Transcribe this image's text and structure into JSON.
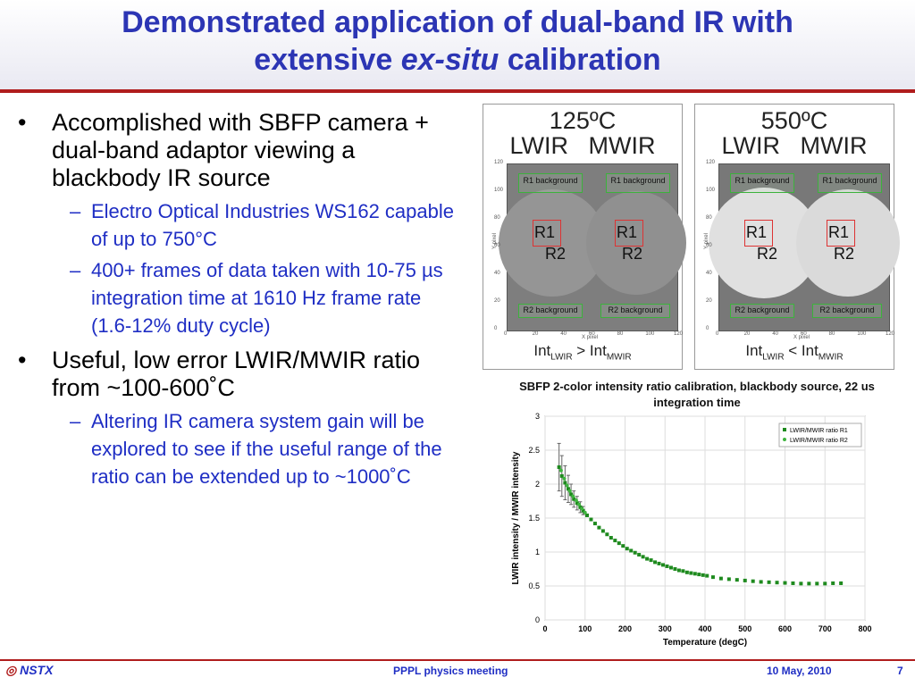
{
  "title": {
    "line1": "Demonstrated application of dual-band IR with",
    "line2_pre": "extensive ",
    "line2_em": "ex-situ",
    "line2_post": " calibration"
  },
  "bullets": [
    {
      "text": "Accomplished with SBFP camera + dual-band adaptor viewing a blackbody IR source",
      "subs": [
        "Electro Optical Industries WS162 capable of up to 750°C",
        "400+ frames of data taken with 10-75 µs integration time at 1610 Hz frame rate (1.6-12% duty cycle)"
      ]
    },
    {
      "text": "Useful, low error LWIR/MWIR ratio from ~100-600˚C",
      "subs": [
        "Altering IR camera system gain will be explored to see if the useful range of the ratio can be extended up to ~1000˚C"
      ]
    }
  ],
  "panels": [
    {
      "temp": "125ºC",
      "bands": "LWIR   MWIR",
      "r1bg": "R1 background",
      "r2bg": "R2 background",
      "r1": "R1",
      "r2": "R2",
      "int_a": "Int",
      "int_a_sub": "LWIR",
      "int_op": " > ",
      "int_b": "Int",
      "int_b_sub": "MWIR"
    },
    {
      "temp": "550ºC",
      "bands": "LWIR   MWIR",
      "r1bg": "R1 background",
      "r2bg": "R2 background",
      "r1": "R1",
      "r2": "R2",
      "int_a": "Int",
      "int_a_sub": "LWIR",
      "int_op": " < ",
      "int_b": "Int",
      "int_b_sub": "MWIR"
    }
  ],
  "image_axes": {
    "y_label": "Y pixel",
    "x_label": "X pixel",
    "ticks": [
      "0",
      "20",
      "40",
      "60",
      "80",
      "100",
      "120"
    ]
  },
  "chart_data": {
    "type": "scatter",
    "title": "SBFP 2-color intensity ratio calibration, blackbody source, 22 us integration time",
    "xlabel": "Temperature (degC)",
    "ylabel": "LWIR intensity / MWIR intensity",
    "xlim": [
      0,
      800
    ],
    "ylim": [
      0,
      3
    ],
    "xticks": [
      0,
      100,
      200,
      300,
      400,
      500,
      600,
      700,
      800
    ],
    "yticks": [
      0,
      0.5,
      1,
      1.5,
      2,
      2.5,
      3
    ],
    "grid": true,
    "legend": "top-right",
    "series": [
      {
        "name": "LWIR/MWIR ratio R1",
        "marker": "square",
        "color": "#1e8a1e",
        "x": [
          35,
          42,
          50,
          58,
          65,
          72,
          80,
          88,
          95,
          105,
          115,
          125,
          135,
          145,
          155,
          165,
          175,
          185,
          195,
          205,
          215,
          225,
          235,
          245,
          255,
          265,
          275,
          285,
          295,
          305,
          315,
          325,
          335,
          345,
          355,
          365,
          375,
          385,
          395,
          405,
          420,
          440,
          460,
          480,
          500,
          520,
          540,
          560,
          580,
          600,
          620,
          640,
          660,
          680,
          700,
          720,
          740
        ],
        "y": [
          2.25,
          2.12,
          2.02,
          1.93,
          1.85,
          1.78,
          1.72,
          1.66,
          1.61,
          1.54,
          1.48,
          1.42,
          1.36,
          1.31,
          1.26,
          1.21,
          1.17,
          1.13,
          1.09,
          1.05,
          1.02,
          0.99,
          0.96,
          0.93,
          0.9,
          0.88,
          0.85,
          0.83,
          0.81,
          0.79,
          0.77,
          0.75,
          0.73,
          0.72,
          0.7,
          0.69,
          0.68,
          0.67,
          0.66,
          0.65,
          0.63,
          0.61,
          0.6,
          0.59,
          0.58,
          0.57,
          0.56,
          0.555,
          0.55,
          0.545,
          0.54,
          0.535,
          0.535,
          0.535,
          0.535,
          0.54,
          0.54
        ]
      },
      {
        "name": "LWIR/MWIR ratio R2",
        "marker": "circle",
        "color": "#3fb53f",
        "x": [
          40,
          48,
          55,
          62,
          70,
          78,
          85,
          92,
          100
        ],
        "y": [
          2.2,
          2.08,
          1.98,
          1.9,
          1.82,
          1.76,
          1.7,
          1.64,
          1.58
        ]
      }
    ],
    "error_bars_x": [
      35,
      42,
      50,
      58,
      65,
      72,
      80,
      88,
      95
    ],
    "error_bars_halfwidth": [
      0.35,
      0.3,
      0.25,
      0.2,
      0.15,
      0.12,
      0.1,
      0.08,
      0.06
    ]
  },
  "footer": {
    "logo": "NSTX",
    "meeting": "PPPL physics meeting",
    "date": "10 May, 2010",
    "page": "7"
  }
}
